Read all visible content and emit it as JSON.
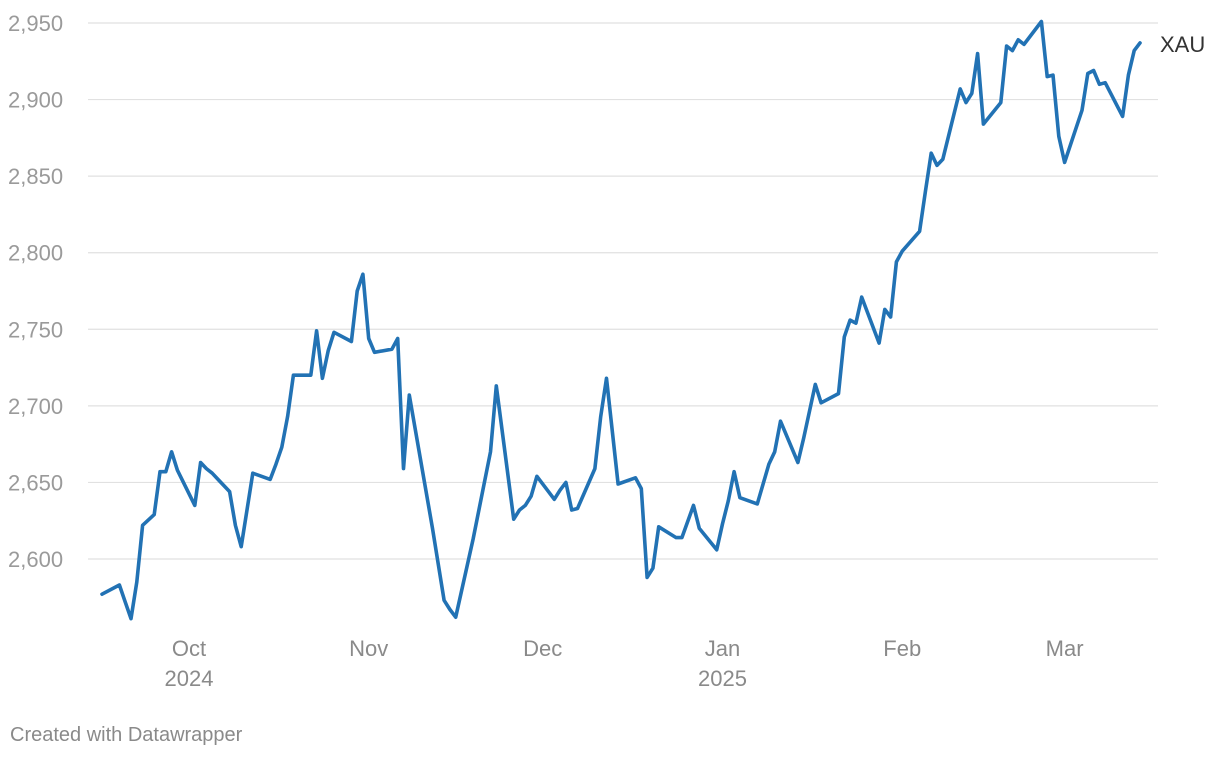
{
  "chart_data": {
    "type": "line",
    "title": "",
    "xlabel": "",
    "ylabel": "",
    "ylim": [
      2550,
      2950
    ],
    "y_ticks": [
      2600,
      2650,
      2700,
      2750,
      2800,
      2850,
      2900,
      2950
    ],
    "y_tick_labels": [
      "2,600",
      "2,650",
      "2,700",
      "2,750",
      "2,800",
      "2,850",
      "2,900",
      "2,950"
    ],
    "x_range": [
      "2024-09-16",
      "2025-03-13"
    ],
    "x_ticks": [
      {
        "date": "2024-10-01",
        "label": "Oct",
        "sublabel": "2024"
      },
      {
        "date": "2024-11-01",
        "label": "Nov",
        "sublabel": ""
      },
      {
        "date": "2024-12-01",
        "label": "Dec",
        "sublabel": ""
      },
      {
        "date": "2025-01-01",
        "label": "Jan",
        "sublabel": "2025"
      },
      {
        "date": "2025-02-01",
        "label": "Feb",
        "sublabel": ""
      },
      {
        "date": "2025-03-01",
        "label": "Mar",
        "sublabel": ""
      }
    ],
    "grid": true,
    "legend": "direct label at line end",
    "series": [
      {
        "name": "XAU",
        "color": "#2272b4",
        "points": [
          [
            "2024-09-16",
            2577
          ],
          [
            "2024-09-19",
            2583
          ],
          [
            "2024-09-20",
            2572
          ],
          [
            "2024-09-21",
            2561
          ],
          [
            "2024-09-22",
            2585
          ],
          [
            "2024-09-23",
            2622
          ],
          [
            "2024-09-25",
            2629
          ],
          [
            "2024-09-26",
            2657
          ],
          [
            "2024-09-27",
            2657
          ],
          [
            "2024-09-28",
            2670
          ],
          [
            "2024-09-29",
            2658
          ],
          [
            "2024-10-02",
            2635
          ],
          [
            "2024-10-03",
            2663
          ],
          [
            "2024-10-04",
            2659
          ],
          [
            "2024-10-05",
            2656
          ],
          [
            "2024-10-06",
            2652
          ],
          [
            "2024-10-08",
            2644
          ],
          [
            "2024-10-09",
            2622
          ],
          [
            "2024-10-10",
            2608
          ],
          [
            "2024-10-12",
            2656
          ],
          [
            "2024-10-15",
            2652
          ],
          [
            "2024-10-16",
            2662
          ],
          [
            "2024-10-17",
            2673
          ],
          [
            "2024-10-18",
            2693
          ],
          [
            "2024-10-19",
            2720
          ],
          [
            "2024-10-22",
            2720
          ],
          [
            "2024-10-23",
            2749
          ],
          [
            "2024-10-24",
            2718
          ],
          [
            "2024-10-25",
            2736
          ],
          [
            "2024-10-26",
            2748
          ],
          [
            "2024-10-29",
            2742
          ],
          [
            "2024-10-30",
            2775
          ],
          [
            "2024-10-31",
            2786
          ],
          [
            "2024-11-01",
            2744
          ],
          [
            "2024-11-02",
            2735
          ],
          [
            "2024-11-05",
            2737
          ],
          [
            "2024-11-06",
            2744
          ],
          [
            "2024-11-07",
            2659
          ],
          [
            "2024-11-08",
            2707
          ],
          [
            "2024-11-12",
            2620
          ],
          [
            "2024-11-14",
            2573
          ],
          [
            "2024-11-15",
            2567
          ],
          [
            "2024-11-16",
            2562
          ],
          [
            "2024-11-19",
            2613
          ],
          [
            "2024-11-22",
            2670
          ],
          [
            "2024-11-23",
            2713
          ],
          [
            "2024-11-26",
            2626
          ],
          [
            "2024-11-27",
            2632
          ],
          [
            "2024-11-28",
            2635
          ],
          [
            "2024-11-29",
            2641
          ],
          [
            "2024-11-30",
            2654
          ],
          [
            "2024-12-03",
            2639
          ],
          [
            "2024-12-04",
            2645
          ],
          [
            "2024-12-05",
            2650
          ],
          [
            "2024-12-06",
            2632
          ],
          [
            "2024-12-07",
            2633
          ],
          [
            "2024-12-10",
            2659
          ],
          [
            "2024-12-11",
            2693
          ],
          [
            "2024-12-12",
            2718
          ],
          [
            "2024-12-14",
            2649
          ],
          [
            "2024-12-17",
            2653
          ],
          [
            "2024-12-18",
            2646
          ],
          [
            "2024-12-19",
            2588
          ],
          [
            "2024-12-20",
            2594
          ],
          [
            "2024-12-21",
            2621
          ],
          [
            "2024-12-24",
            2614
          ],
          [
            "2024-12-25",
            2614
          ],
          [
            "2024-12-27",
            2635
          ],
          [
            "2024-12-28",
            2620
          ],
          [
            "2024-12-31",
            2606
          ],
          [
            "2025-01-01",
            2623
          ],
          [
            "2025-01-02",
            2638
          ],
          [
            "2025-01-03",
            2657
          ],
          [
            "2025-01-04",
            2640
          ],
          [
            "2025-01-07",
            2636
          ],
          [
            "2025-01-08",
            2649
          ],
          [
            "2025-01-09",
            2662
          ],
          [
            "2025-01-10",
            2670
          ],
          [
            "2025-01-11",
            2690
          ],
          [
            "2025-01-14",
            2663
          ],
          [
            "2025-01-15",
            2679
          ],
          [
            "2025-01-17",
            2714
          ],
          [
            "2025-01-18",
            2702
          ],
          [
            "2025-01-21",
            2708
          ],
          [
            "2025-01-22",
            2745
          ],
          [
            "2025-01-23",
            2756
          ],
          [
            "2025-01-24",
            2754
          ],
          [
            "2025-01-25",
            2771
          ],
          [
            "2025-01-28",
            2741
          ],
          [
            "2025-01-29",
            2763
          ],
          [
            "2025-01-30",
            2758
          ],
          [
            "2025-01-31",
            2794
          ],
          [
            "2025-02-01",
            2801
          ],
          [
            "2025-02-04",
            2814
          ],
          [
            "2025-02-05",
            2840
          ],
          [
            "2025-02-06",
            2865
          ],
          [
            "2025-02-07",
            2857
          ],
          [
            "2025-02-08",
            2861
          ],
          [
            "2025-02-11",
            2907
          ],
          [
            "2025-02-12",
            2898
          ],
          [
            "2025-02-13",
            2904
          ],
          [
            "2025-02-14",
            2930
          ],
          [
            "2025-02-15",
            2884
          ],
          [
            "2025-02-18",
            2898
          ],
          [
            "2025-02-19",
            2935
          ],
          [
            "2025-02-20",
            2932
          ],
          [
            "2025-02-21",
            2939
          ],
          [
            "2025-02-22",
            2936
          ],
          [
            "2025-02-25",
            2951
          ],
          [
            "2025-02-26",
            2915
          ],
          [
            "2025-02-27",
            2916
          ],
          [
            "2025-02-28",
            2876
          ],
          [
            "2025-03-01",
            2859
          ],
          [
            "2025-03-04",
            2893
          ],
          [
            "2025-03-05",
            2917
          ],
          [
            "2025-03-06",
            2919
          ],
          [
            "2025-03-07",
            2910
          ],
          [
            "2025-03-08",
            2911
          ],
          [
            "2025-03-11",
            2889
          ],
          [
            "2025-03-12",
            2916
          ],
          [
            "2025-03-13",
            2932
          ],
          [
            "2025-03-14",
            2937
          ]
        ]
      }
    ]
  },
  "credit": "Created with Datawrapper"
}
